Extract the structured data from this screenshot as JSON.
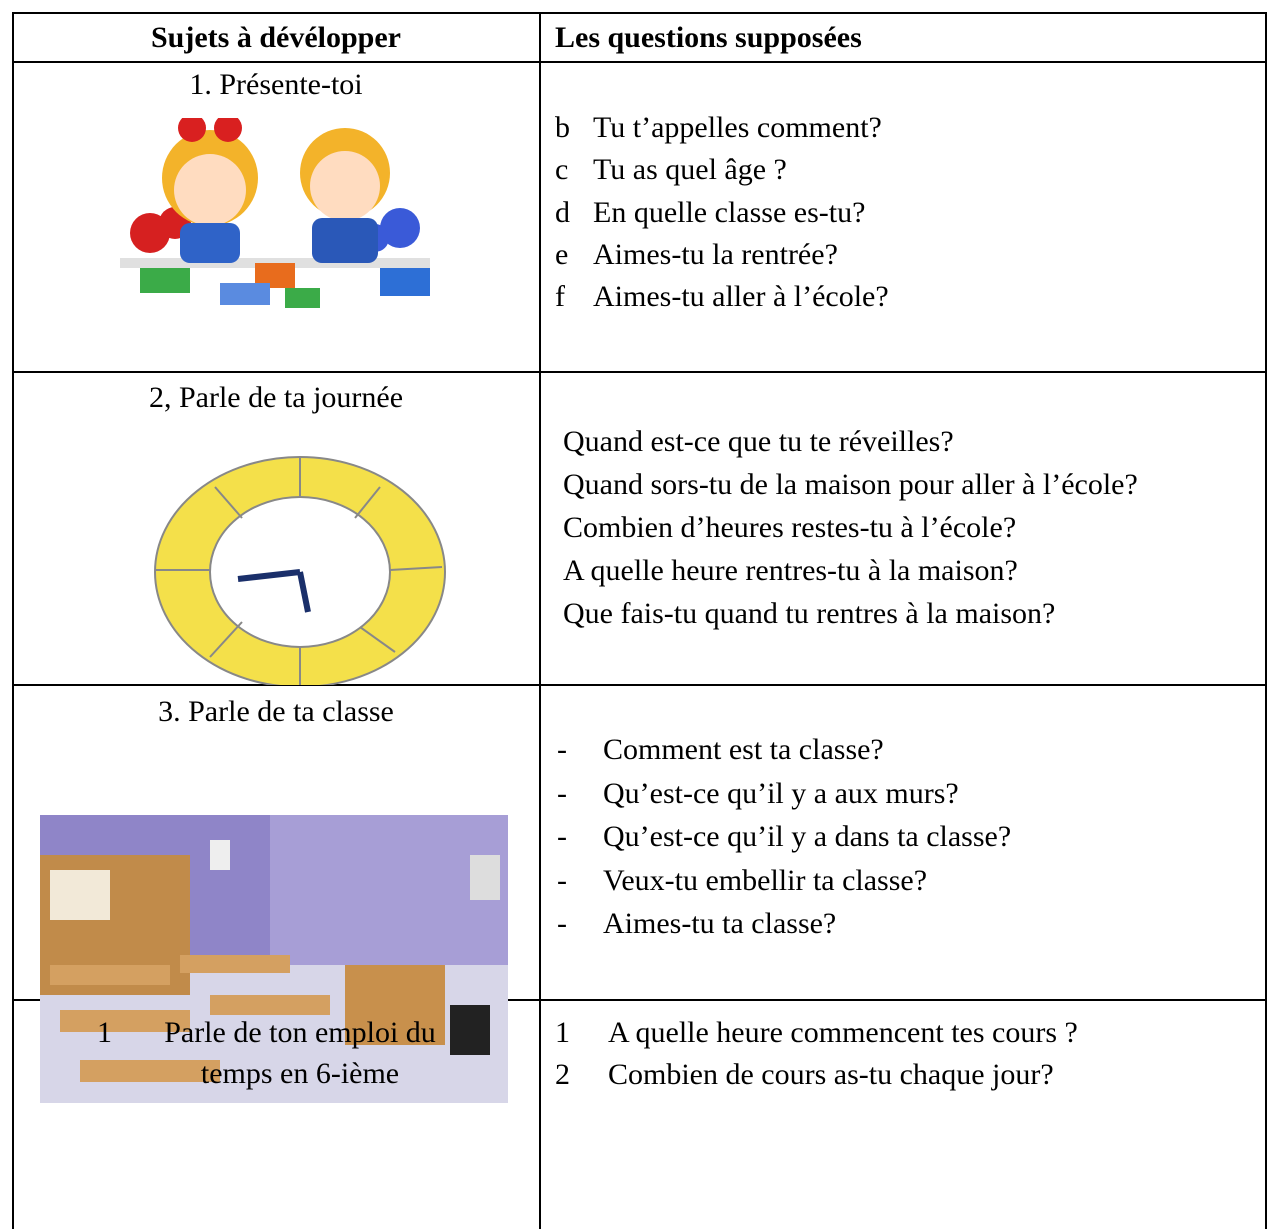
{
  "table": {
    "header": [
      "Sujets à dévélopper",
      "Les questions supposées"
    ],
    "rows": [
      {
        "subject": "1. Présente-toi",
        "questions": [
          {
            "marker": "b",
            "text": "Tu t’appelles comment?"
          },
          {
            "marker": "c",
            "text": "Tu as quel âge ?"
          },
          {
            "marker": "d",
            "text": "En quelle classe es-tu?"
          },
          {
            "marker": "e",
            "text": "Aimes-tu la rentrée?"
          },
          {
            "marker": "f",
            "text": "Aimes-tu aller à l’école?"
          }
        ]
      },
      {
        "subject": "2, Parle de ta journée",
        "questions": [
          "Quand est-ce que tu te réveilles?",
          "Quand sors-tu de la maison pour aller à l’école?",
          "Combien d’heures restes-tu à l’école?",
          "A quelle heure rentres-tu à la maison?",
          "Que fais-tu quand tu rentres à la maison?"
        ]
      },
      {
        "subject": "3. Parle de ta classe",
        "questions": [
          {
            "marker": "-",
            "text": "Comment est ta classe?"
          },
          {
            "marker": "-",
            "text": "Qu’est-ce qu’il y a aux murs?"
          },
          {
            "marker": "-",
            "text": "Qu’est-ce qu’il y a dans ta classe?"
          },
          {
            "marker": "-",
            "text": "Veux-tu embellir ta classe?"
          },
          {
            "marker": "-",
            "text": "Aimes-tu ta classe?"
          }
        ]
      },
      {
        "subject": {
          "marker": "1",
          "text": "Parle de ton emploi du temps en 6-ième"
        },
        "questions": [
          {
            "marker": "1",
            "text": "A quelle heure commencent tes cours ?"
          },
          {
            "marker": "2",
            "text": "Combien de cours as-tu chaque jour?"
          }
        ]
      }
    ]
  }
}
